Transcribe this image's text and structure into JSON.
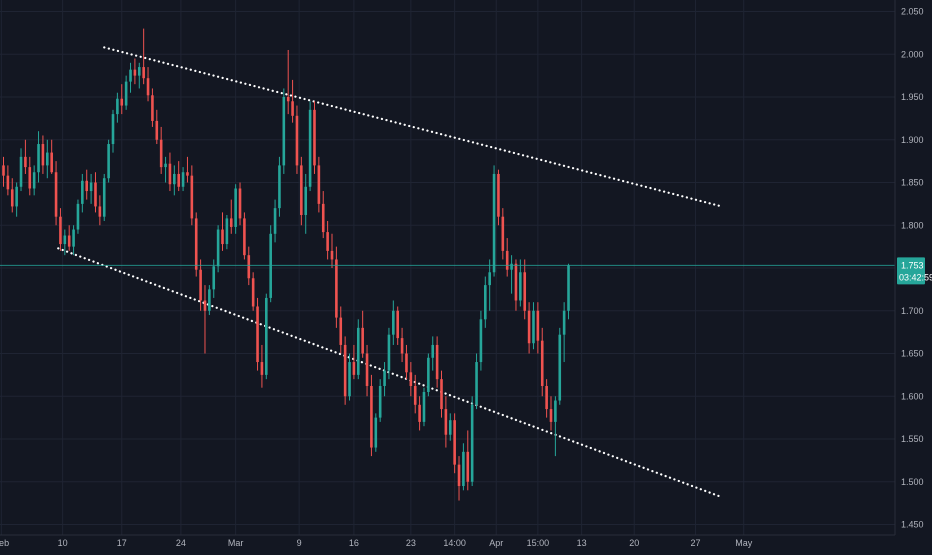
{
  "chart_data": {
    "type": "candlestick",
    "theme": {
      "background": "#131722",
      "grid": "#1f2433",
      "text": "#b2b5be",
      "up_color": "#26a69a",
      "down_color": "#ef5350",
      "trendline_color": "#ffffff",
      "price_line_color": "#26a69a"
    },
    "ylim": [
      1.45,
      2.05
    ],
    "y_ticks": [
      "2.050",
      "2.000",
      "1.950",
      "1.900",
      "1.850",
      "1.800",
      "1.750",
      "1.700",
      "1.650",
      "1.600",
      "1.550",
      "1.500",
      "1.450"
    ],
    "x_ticks": [
      {
        "i": -0.5,
        "label": "Feb"
      },
      {
        "i": 13.5,
        "label": "10"
      },
      {
        "i": 27,
        "label": "17"
      },
      {
        "i": 40.5,
        "label": "24"
      },
      {
        "i": 53,
        "label": "Mar"
      },
      {
        "i": 67.5,
        "label": "9"
      },
      {
        "i": 80,
        "label": "16"
      },
      {
        "i": 93,
        "label": "23"
      },
      {
        "i": 103,
        "label": "14:00"
      },
      {
        "i": 112.5,
        "label": "Apr"
      },
      {
        "i": 122,
        "label": "15:00"
      },
      {
        "i": 132,
        "label": "13"
      },
      {
        "i": 144,
        "label": "20"
      },
      {
        "i": 158,
        "label": "27"
      },
      {
        "i": 169,
        "label": "May"
      }
    ],
    "current_price": {
      "value": 1.753,
      "label": "1.753",
      "countdown": "03:42:59"
    },
    "trendlines": [
      {
        "from": [
          23,
          2.008
        ],
        "to": [
          164,
          1.822
        ],
        "style": "dotted"
      },
      {
        "from": [
          12.5,
          1.773
        ],
        "to": [
          164,
          1.482
        ],
        "style": "dotted"
      }
    ],
    "candles": [
      [
        1.87,
        1.88,
        1.845,
        1.858
      ],
      [
        1.858,
        1.87,
        1.835,
        1.842
      ],
      [
        1.842,
        1.855,
        1.815,
        1.822
      ],
      [
        1.822,
        1.85,
        1.81,
        1.845
      ],
      [
        1.845,
        1.89,
        1.84,
        1.88
      ],
      [
        1.88,
        1.9,
        1.86,
        1.868
      ],
      [
        1.868,
        1.88,
        1.835,
        1.843
      ],
      [
        1.843,
        1.87,
        1.835,
        1.862
      ],
      [
        1.862,
        1.91,
        1.85,
        1.895
      ],
      [
        1.895,
        1.905,
        1.86,
        1.87
      ],
      [
        1.87,
        1.9,
        1.855,
        1.885
      ],
      [
        1.885,
        1.9,
        1.86,
        1.862
      ],
      [
        1.862,
        1.875,
        1.8,
        1.81
      ],
      [
        1.81,
        1.82,
        1.77,
        1.778
      ],
      [
        1.778,
        1.795,
        1.765,
        1.788
      ],
      [
        1.788,
        1.8,
        1.77,
        1.775
      ],
      [
        1.775,
        1.8,
        1.765,
        1.795
      ],
      [
        1.795,
        1.83,
        1.79,
        1.825
      ],
      [
        1.825,
        1.86,
        1.815,
        1.852
      ],
      [
        1.852,
        1.865,
        1.83,
        1.84
      ],
      [
        1.84,
        1.86,
        1.825,
        1.85
      ],
      [
        1.85,
        1.862,
        1.815,
        1.822
      ],
      [
        1.822,
        1.835,
        1.8,
        1.81
      ],
      [
        1.81,
        1.86,
        1.805,
        1.855
      ],
      [
        1.855,
        1.9,
        1.85,
        1.895
      ],
      [
        1.895,
        1.935,
        1.885,
        1.93
      ],
      [
        1.93,
        1.955,
        1.92,
        1.948
      ],
      [
        1.948,
        1.965,
        1.93,
        1.94
      ],
      [
        1.94,
        1.975,
        1.935,
        1.968
      ],
      [
        1.968,
        1.99,
        1.955,
        1.982
      ],
      [
        1.982,
        1.995,
        1.965,
        1.975
      ],
      [
        1.975,
        1.99,
        1.96,
        1.985
      ],
      [
        1.985,
        2.03,
        1.965,
        1.972
      ],
      [
        1.972,
        1.985,
        1.945,
        1.952
      ],
      [
        1.952,
        1.96,
        1.915,
        1.922
      ],
      [
        1.922,
        1.935,
        1.895,
        1.9
      ],
      [
        1.9,
        1.915,
        1.86,
        1.868
      ],
      [
        1.868,
        1.88,
        1.85,
        1.872
      ],
      [
        1.872,
        1.885,
        1.84,
        1.848
      ],
      [
        1.848,
        1.87,
        1.835,
        1.86
      ],
      [
        1.86,
        1.875,
        1.84,
        1.845
      ],
      [
        1.845,
        1.868,
        1.84,
        1.862
      ],
      [
        1.862,
        1.88,
        1.85,
        1.858
      ],
      [
        1.858,
        1.87,
        1.8,
        1.808
      ],
      [
        1.808,
        1.815,
        1.74,
        1.748
      ],
      [
        1.748,
        1.76,
        1.7,
        1.712
      ],
      [
        1.712,
        1.73,
        1.65,
        1.7
      ],
      [
        1.7,
        1.73,
        1.695,
        1.725
      ],
      [
        1.725,
        1.76,
        1.715,
        1.752
      ],
      [
        1.752,
        1.8,
        1.745,
        1.795
      ],
      [
        1.795,
        1.815,
        1.77,
        1.778
      ],
      [
        1.778,
        1.812,
        1.772,
        1.808
      ],
      [
        1.808,
        1.83,
        1.79,
        1.798
      ],
      [
        1.798,
        1.848,
        1.79,
        1.843
      ],
      [
        1.843,
        1.85,
        1.8,
        1.808
      ],
      [
        1.808,
        1.815,
        1.76,
        1.765
      ],
      [
        1.765,
        1.775,
        1.73,
        1.738
      ],
      [
        1.738,
        1.745,
        1.7,
        1.705
      ],
      [
        1.705,
        1.715,
        1.63,
        1.64
      ],
      [
        1.64,
        1.66,
        1.61,
        1.625
      ],
      [
        1.625,
        1.72,
        1.62,
        1.715
      ],
      [
        1.715,
        1.8,
        1.71,
        1.79
      ],
      [
        1.79,
        1.83,
        1.78,
        1.82
      ],
      [
        1.82,
        1.88,
        1.81,
        1.87
      ],
      [
        1.87,
        1.96,
        1.86,
        1.95
      ],
      [
        1.95,
        2.005,
        1.93,
        1.945
      ],
      [
        1.945,
        1.97,
        1.92,
        1.928
      ],
      [
        1.928,
        1.94,
        1.86,
        1.87
      ],
      [
        1.87,
        1.88,
        1.8,
        1.812
      ],
      [
        1.812,
        1.86,
        1.79,
        1.845
      ],
      [
        1.845,
        1.945,
        1.84,
        1.935
      ],
      [
        1.935,
        1.945,
        1.86,
        1.87
      ],
      [
        1.87,
        1.88,
        1.815,
        1.825
      ],
      [
        1.825,
        1.84,
        1.785,
        1.792
      ],
      [
        1.792,
        1.805,
        1.76,
        1.77
      ],
      [
        1.77,
        1.79,
        1.75,
        1.76
      ],
      [
        1.76,
        1.775,
        1.68,
        1.692
      ],
      [
        1.692,
        1.705,
        1.65,
        1.66
      ],
      [
        1.66,
        1.67,
        1.59,
        1.6
      ],
      [
        1.6,
        1.65,
        1.595,
        1.64
      ],
      [
        1.64,
        1.66,
        1.62,
        1.625
      ],
      [
        1.625,
        1.69,
        1.62,
        1.68
      ],
      [
        1.68,
        1.7,
        1.645,
        1.65
      ],
      [
        1.65,
        1.66,
        1.6,
        1.612
      ],
      [
        1.612,
        1.625,
        1.53,
        1.54
      ],
      [
        1.54,
        1.58,
        1.535,
        1.575
      ],
      [
        1.575,
        1.62,
        1.57,
        1.612
      ],
      [
        1.612,
        1.64,
        1.6,
        1.63
      ],
      [
        1.63,
        1.68,
        1.62,
        1.672
      ],
      [
        1.672,
        1.712,
        1.66,
        1.7
      ],
      [
        1.7,
        1.705,
        1.66,
        1.668
      ],
      [
        1.668,
        1.68,
        1.64,
        1.65
      ],
      [
        1.65,
        1.66,
        1.62,
        1.628
      ],
      [
        1.628,
        1.64,
        1.6,
        1.612
      ],
      [
        1.612,
        1.625,
        1.58,
        1.59
      ],
      [
        1.59,
        1.6,
        1.56,
        1.57
      ],
      [
        1.57,
        1.61,
        1.565,
        1.605
      ],
      [
        1.605,
        1.65,
        1.6,
        1.645
      ],
      [
        1.645,
        1.67,
        1.63,
        1.66
      ],
      [
        1.66,
        1.67,
        1.61,
        1.62
      ],
      [
        1.62,
        1.63,
        1.575,
        1.585
      ],
      [
        1.585,
        1.6,
        1.54,
        1.555
      ],
      [
        1.555,
        1.58,
        1.548,
        1.572
      ],
      [
        1.572,
        1.58,
        1.51,
        1.52
      ],
      [
        1.52,
        1.53,
        1.478,
        1.495
      ],
      [
        1.495,
        1.545,
        1.49,
        1.535
      ],
      [
        1.535,
        1.56,
        1.49,
        1.5
      ],
      [
        1.5,
        1.6,
        1.495,
        1.59
      ],
      [
        1.59,
        1.65,
        1.585,
        1.64
      ],
      [
        1.64,
        1.7,
        1.63,
        1.69
      ],
      [
        1.69,
        1.74,
        1.68,
        1.73
      ],
      [
        1.73,
        1.76,
        1.7,
        1.745
      ],
      [
        1.745,
        1.87,
        1.74,
        1.86
      ],
      [
        1.86,
        1.865,
        1.8,
        1.81
      ],
      [
        1.81,
        1.82,
        1.76,
        1.77
      ],
      [
        1.77,
        1.785,
        1.74,
        1.748
      ],
      [
        1.748,
        1.765,
        1.72,
        1.755
      ],
      [
        1.755,
        1.76,
        1.7,
        1.712
      ],
      [
        1.712,
        1.76,
        1.705,
        1.745
      ],
      [
        1.745,
        1.76,
        1.69,
        1.7
      ],
      [
        1.7,
        1.71,
        1.65,
        1.662
      ],
      [
        1.662,
        1.71,
        1.655,
        1.7
      ],
      [
        1.7,
        1.71,
        1.65,
        1.665
      ],
      [
        1.665,
        1.68,
        1.6,
        1.612
      ],
      [
        1.612,
        1.62,
        1.575,
        1.585
      ],
      [
        1.585,
        1.6,
        1.56,
        1.57
      ],
      [
        1.57,
        1.6,
        1.53,
        1.595
      ],
      [
        1.595,
        1.68,
        1.59,
        1.672
      ],
      [
        1.672,
        1.71,
        1.64,
        1.7
      ],
      [
        1.7,
        1.755,
        1.69,
        1.753
      ]
    ]
  }
}
